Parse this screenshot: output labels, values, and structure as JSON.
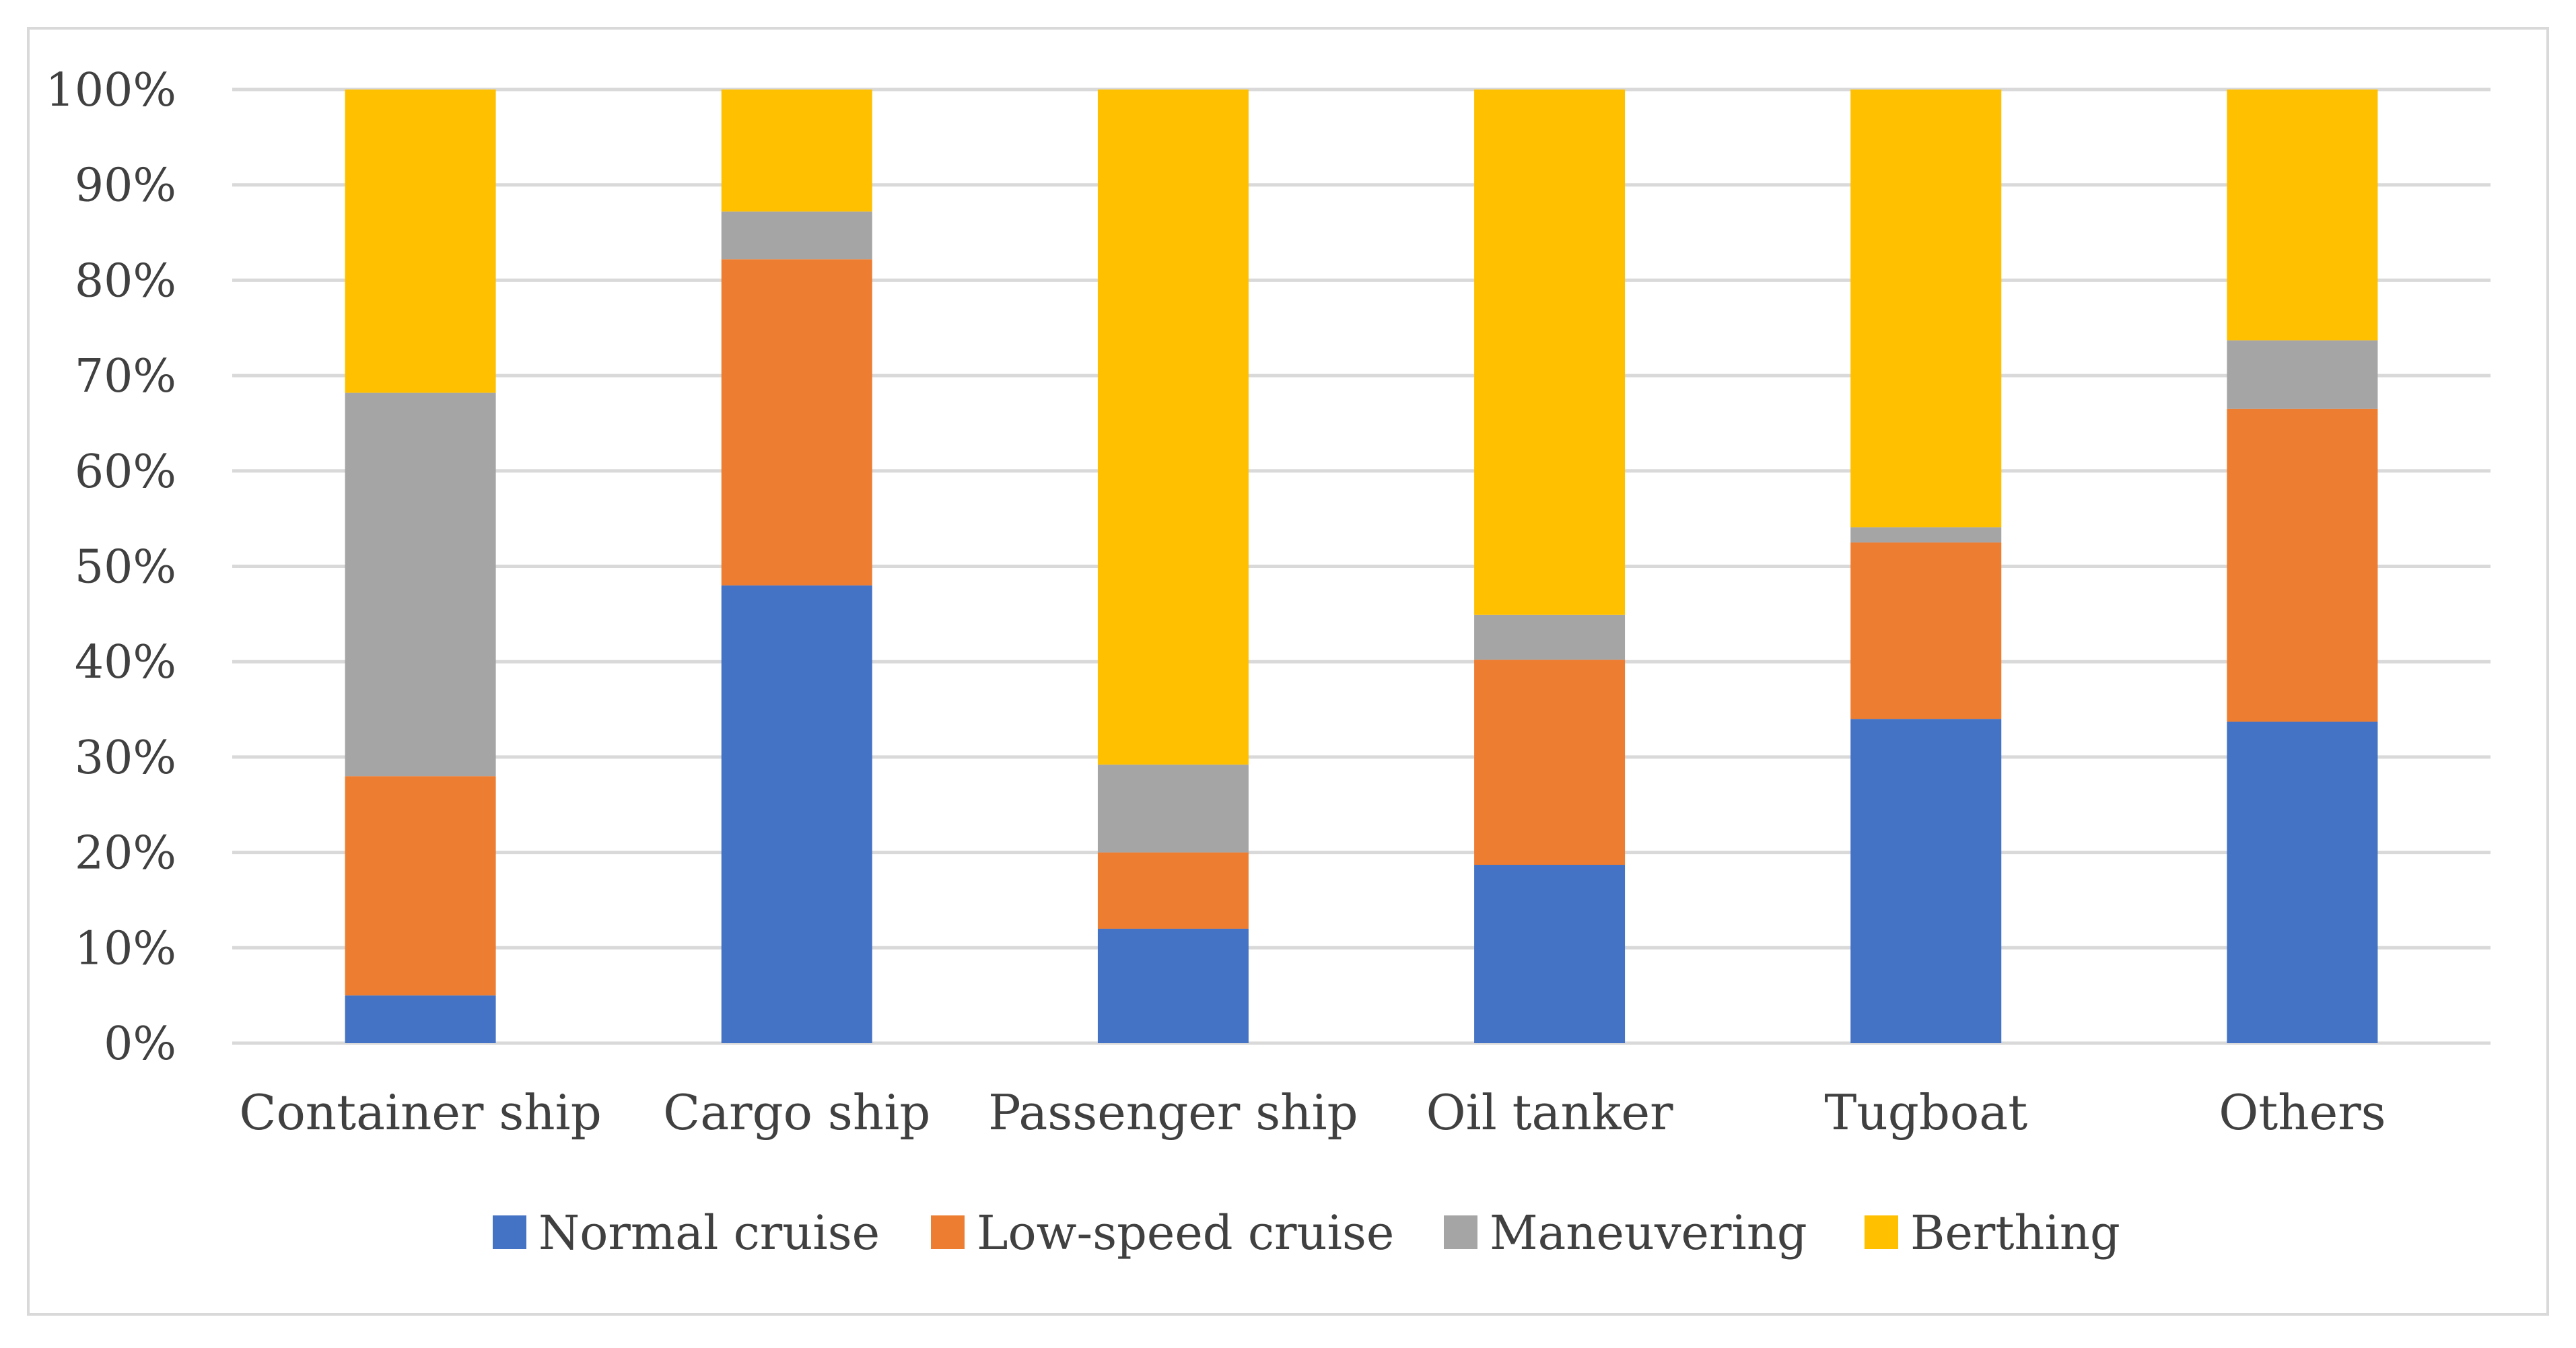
{
  "chart_data": {
    "type": "bar",
    "stacked": true,
    "normalized_percent": true,
    "title": "",
    "xlabel": "",
    "ylabel": "",
    "categories": [
      "Container ship",
      "Cargo ship",
      "Passenger ship",
      "Oil tanker",
      "Tugboat",
      "Others"
    ],
    "series": [
      {
        "name": "Normal cruise",
        "color": "#4472C4",
        "values": [
          5,
          48,
          12,
          18.7,
          34,
          33.7
        ]
      },
      {
        "name": "Low-speed cruise",
        "color": "#ED7D31",
        "values": [
          23,
          34.2,
          8,
          21.5,
          18.5,
          32.8
        ]
      },
      {
        "name": "Maneuvering",
        "color": "#A5A5A5",
        "values": [
          40.2,
          5,
          9.2,
          4.7,
          1.6,
          7.2
        ]
      },
      {
        "name": "Berthing",
        "color": "#FFC000",
        "values": [
          31.8,
          12.8,
          70.8,
          55.1,
          45.9,
          26.3
        ]
      }
    ],
    "ylim": [
      0,
      100
    ],
    "yticks": [
      "0%",
      "10%",
      "20%",
      "30%",
      "40%",
      "50%",
      "60%",
      "70%",
      "80%",
      "90%",
      "100%"
    ],
    "grid": true,
    "legend_position": "bottom"
  }
}
